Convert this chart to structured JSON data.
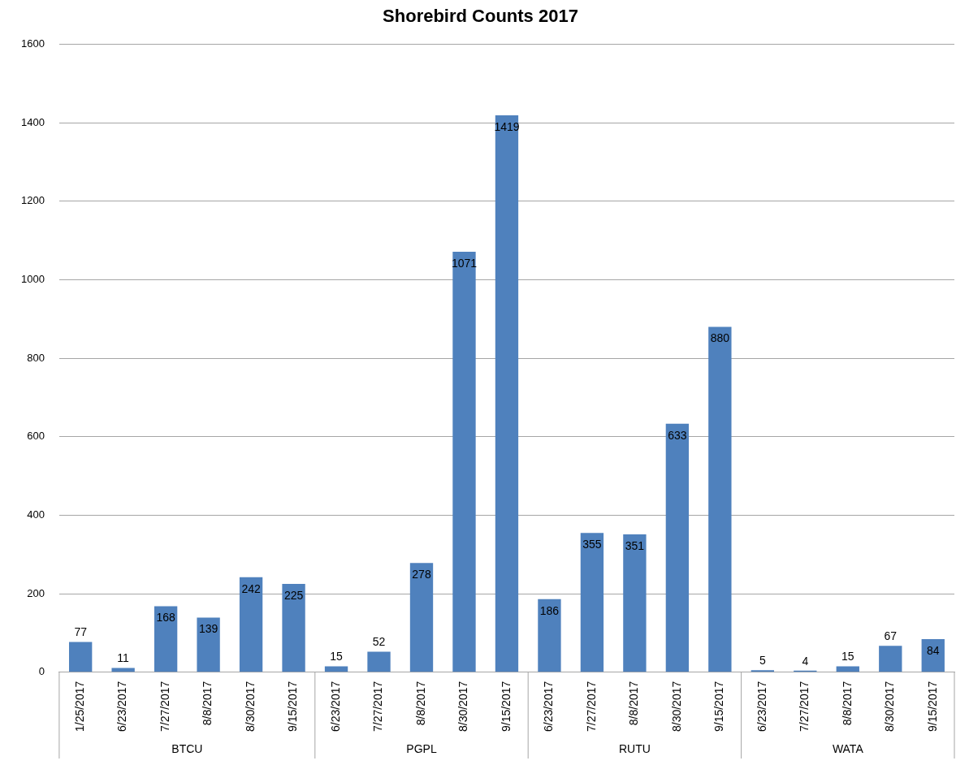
{
  "chart_data": {
    "type": "bar",
    "title": "Shorebird Counts 2017",
    "categories": [
      "1/25/2017",
      "6/23/2017",
      "7/27/2017",
      "8/8/2017",
      "8/30/2017",
      "9/15/2017",
      "6/23/2017",
      "7/27/2017",
      "8/8/2017",
      "8/30/2017",
      "9/15/2017",
      "6/23/2017",
      "7/27/2017",
      "8/8/2017",
      "8/30/2017",
      "9/15/2017",
      "6/23/2017",
      "7/27/2017",
      "8/8/2017",
      "8/30/2017",
      "9/15/2017"
    ],
    "values": [
      77,
      11,
      168,
      139,
      242,
      225,
      15,
      52,
      278,
      1071,
      1419,
      186,
      355,
      351,
      633,
      880,
      5,
      4,
      15,
      67,
      84
    ],
    "color": "#4f81bd",
    "ylim": [
      0,
      1600
    ],
    "yticks": [
      0,
      200,
      400,
      600,
      800,
      1000,
      1200,
      1400,
      1600
    ],
    "grid": "y",
    "data_labels": true,
    "annotations": [
      "BTCU",
      "PGPL",
      "RUTU",
      "WATA"
    ]
  }
}
